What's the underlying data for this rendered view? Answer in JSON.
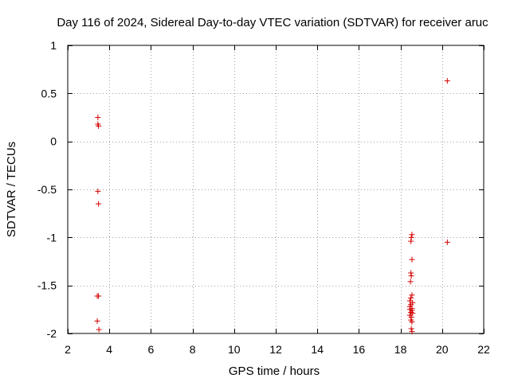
{
  "chart_data": {
    "type": "scatter",
    "title": "Day 116 of 2024, Sidereal Day-to-day VTEC variation (SDTVAR) for receiver aruc",
    "xlabel": "GPS time / hours",
    "ylabel": "SDTVAR / TECUs",
    "xlim": [
      2,
      22
    ],
    "ylim": [
      -2,
      1
    ],
    "xticks": [
      2,
      4,
      6,
      8,
      10,
      12,
      14,
      16,
      18,
      20,
      22
    ],
    "yticks": [
      1,
      0.5,
      0,
      -0.5,
      -1,
      -1.5,
      -2
    ],
    "xtick_labels": [
      "2",
      "4",
      "6",
      "8",
      "10",
      "12",
      "14",
      "16",
      "18",
      "20",
      "22"
    ],
    "ytick_labels": [
      "1",
      "0.5",
      "0",
      "-0.5",
      "-1",
      "-1.5",
      "-2"
    ],
    "grid": true,
    "marker": "+",
    "color": "#d40000",
    "series": [
      {
        "name": "aruc",
        "points": [
          [
            3.45,
            0.25
          ],
          [
            3.45,
            0.18
          ],
          [
            3.48,
            0.16
          ],
          [
            3.45,
            -0.52
          ],
          [
            3.48,
            -0.65
          ],
          [
            3.42,
            -1.61
          ],
          [
            3.48,
            -1.61
          ],
          [
            3.42,
            -1.87
          ],
          [
            3.5,
            -1.96
          ],
          [
            18.55,
            -0.97
          ],
          [
            18.52,
            -1.0
          ],
          [
            18.5,
            -1.04
          ],
          [
            18.55,
            -1.23
          ],
          [
            18.5,
            -1.37
          ],
          [
            18.52,
            -1.4
          ],
          [
            18.48,
            -1.46
          ],
          [
            18.55,
            -1.6
          ],
          [
            18.5,
            -1.63
          ],
          [
            18.45,
            -1.66
          ],
          [
            18.58,
            -1.68
          ],
          [
            18.5,
            -1.7
          ],
          [
            18.45,
            -1.72
          ],
          [
            18.55,
            -1.74
          ],
          [
            18.45,
            -1.75
          ],
          [
            18.55,
            -1.76
          ],
          [
            18.5,
            -1.78
          ],
          [
            18.58,
            -1.79
          ],
          [
            18.45,
            -1.81
          ],
          [
            18.52,
            -1.83
          ],
          [
            18.5,
            -1.86
          ],
          [
            18.55,
            -1.88
          ],
          [
            18.52,
            -1.95
          ],
          [
            18.55,
            -1.98
          ],
          [
            20.25,
            0.63
          ],
          [
            20.25,
            -1.05
          ]
        ]
      }
    ]
  }
}
